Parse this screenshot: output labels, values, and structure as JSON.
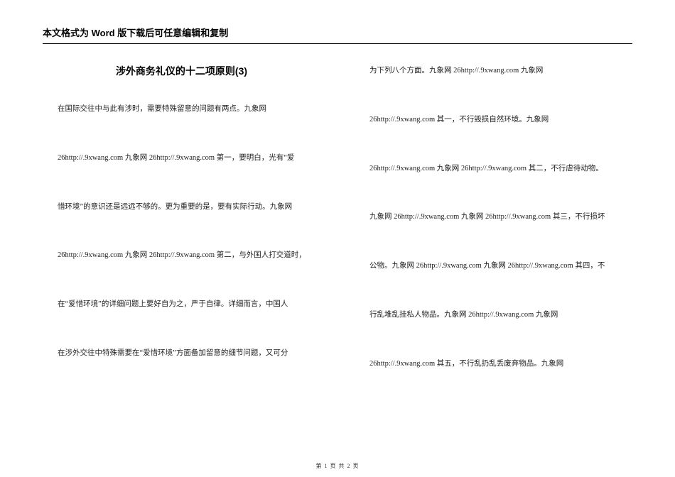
{
  "header": "本文格式为 Word 版下载后可任意编辑和复制",
  "title": "涉外商务礼仪的十二项原则(3)",
  "left_paragraphs": [
    "在国际交往中与此有涉时，需要特殊留意的问题有两点。九象网",
    "26http://.9xwang.com 九象网 26http://.9xwang.com 第一，要明白，光有“爱",
    "惜环境”的意识还是远远不够的。更为重要的是，要有实际行动。九象网",
    "26http://.9xwang.com 九象网 26http://.9xwang.com 第二，与外国人打交道时，",
    "在“爱惜环境”的详细问题上要好自为之，严于自律。详细而言，中国人",
    "在涉外交往中特殊需要在“爱惜环境”方面备加留意的细节问题，又可分"
  ],
  "right_paragraphs": [
    "为下列八个方面。九象网 26http://.9xwang.com 九象网",
    "26http://.9xwang.com 其一，不行毁损自然环境。九象网",
    "26http://.9xwang.com 九象网 26http://.9xwang.com 其二，不行虐待动物。",
    "九象网 26http://.9xwang.com 九象网 26http://.9xwang.com 其三，不行损坏",
    "公物。九象网 26http://.9xwang.com 九象网 26http://.9xwang.com 其四，不",
    "行乱堆乱挂私人物品。九象网 26http://.9xwang.com 九象网",
    "26http://.9xwang.com 其五，不行乱扔乱丢废弃物品。九象网"
  ],
  "footer": "第 1 页 共 2 页"
}
